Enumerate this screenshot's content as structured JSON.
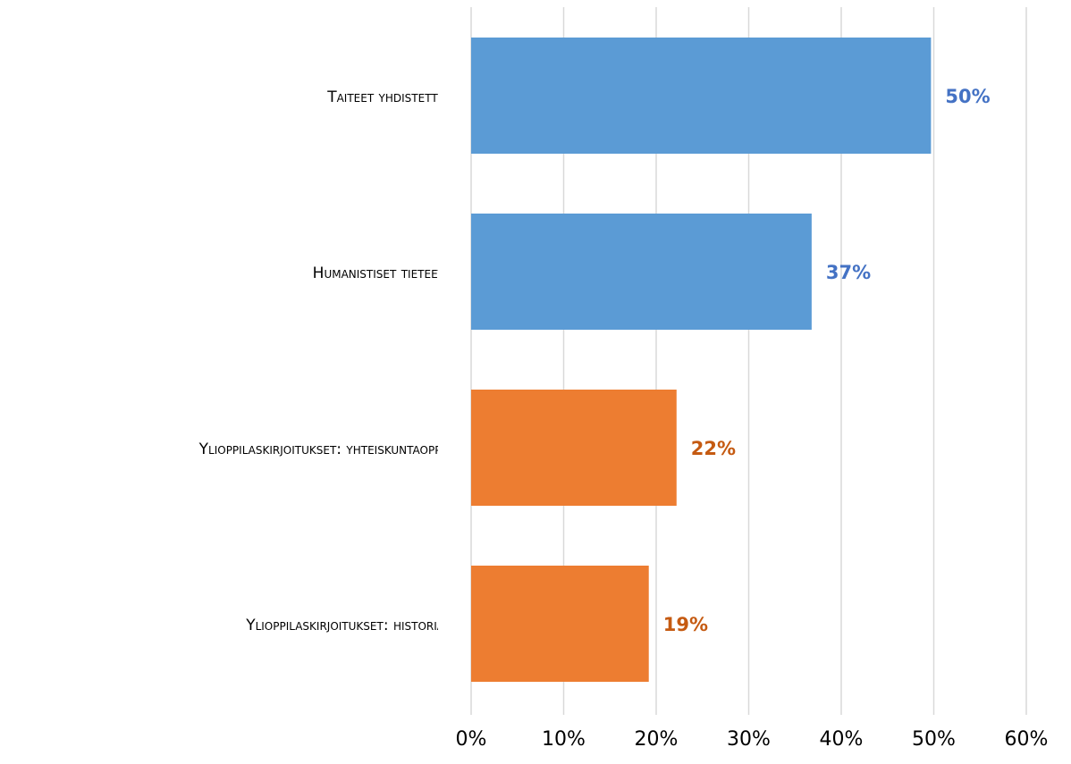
{
  "chart_data": {
    "type": "barh",
    "categories": [
      "Taiteet yhdistetty",
      "Humanistiset tieteet",
      "Ylioppilaskirjoitukset: yhteiskuntaoppi",
      "Ylioppilaskirjoitukset: historia"
    ],
    "values": [
      49.7,
      36.8,
      22.2,
      19.2
    ],
    "value_labels": [
      "50%",
      "37%",
      "22%",
      "19%"
    ],
    "colors": [
      "#5b9bd5",
      "#5b9bd5",
      "#ed7d31",
      "#ed7d31"
    ],
    "label_colors": [
      "#4472c4",
      "#4472c4",
      "#c55a11",
      "#c55a11"
    ],
    "xlim": [
      0,
      60
    ],
    "xticks": [
      {
        "value": 0,
        "label": "0%"
      },
      {
        "value": 10,
        "label": "10%"
      },
      {
        "value": 20,
        "label": "20%"
      },
      {
        "value": 30,
        "label": "30%"
      },
      {
        "value": 40,
        "label": "40%"
      },
      {
        "value": 50,
        "label": "50%"
      },
      {
        "value": 60,
        "label": "60%"
      }
    ],
    "grid": true
  }
}
